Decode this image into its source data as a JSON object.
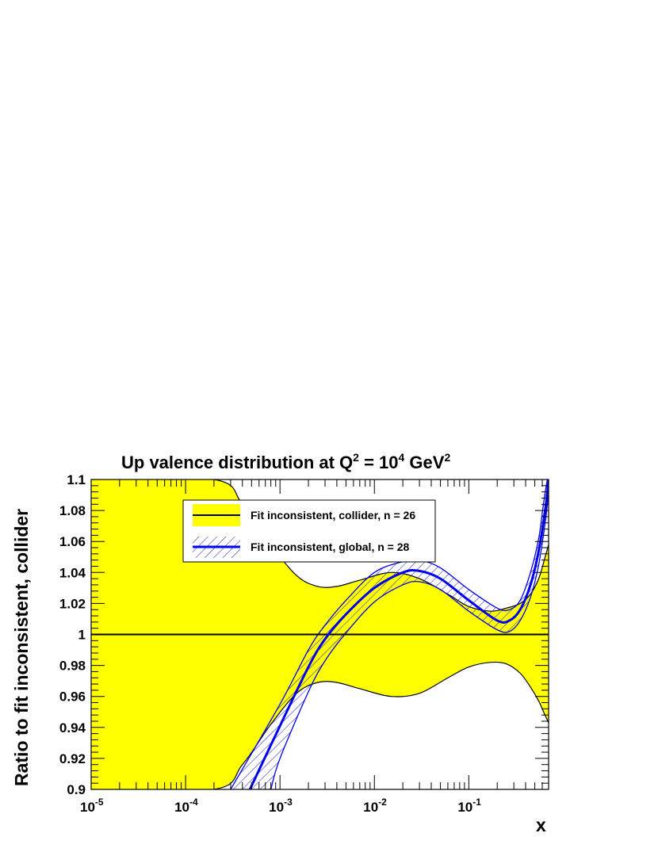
{
  "chart_data": {
    "type": "line",
    "title": {
      "main": "Up valence distribution at Q",
      "sup1": "2",
      "mid": " = 10",
      "sup2": "4",
      "unit": " GeV",
      "sup3": "2"
    },
    "xlabel": "x",
    "ylabel": "Ratio to fit inconsistent, collider",
    "x_scale": "log",
    "xlim": [
      1e-05,
      0.7
    ],
    "ylim": [
      0.9,
      1.1
    ],
    "x_ticks": [
      {
        "value": 1e-05,
        "base": "10",
        "exp": "-5"
      },
      {
        "value": 0.0001,
        "base": "10",
        "exp": "-4"
      },
      {
        "value": 0.001,
        "base": "10",
        "exp": "-3"
      },
      {
        "value": 0.01,
        "base": "10",
        "exp": "-2"
      },
      {
        "value": 0.1,
        "base": "10",
        "exp": "-1"
      }
    ],
    "y_ticks": [
      {
        "value": 0.9,
        "label": "0.9"
      },
      {
        "value": 0.92,
        "label": "0.92"
      },
      {
        "value": 0.94,
        "label": "0.94"
      },
      {
        "value": 0.96,
        "label": "0.96"
      },
      {
        "value": 0.98,
        "label": "0.98"
      },
      {
        "value": 1.0,
        "label": "1"
      },
      {
        "value": 1.02,
        "label": "1.02"
      },
      {
        "value": 1.04,
        "label": "1.04"
      },
      {
        "value": 1.06,
        "label": "1.06"
      },
      {
        "value": 1.08,
        "label": "1.08"
      },
      {
        "value": 1.1,
        "label": "1.1"
      }
    ],
    "legend_position": "top-center",
    "series": [
      {
        "name": "Fit inconsistent, collider, n = 26",
        "color": "#000000",
        "band_color": "#ffff00",
        "central": [
          [
            1e-05,
            1.0
          ],
          [
            0.7,
            1.0
          ]
        ],
        "upper": [
          [
            1e-05,
            1.1
          ],
          [
            0.0002,
            1.1
          ],
          [
            0.0004,
            1.084
          ],
          [
            0.0008,
            1.058
          ],
          [
            0.0015,
            1.038
          ],
          [
            0.0025,
            1.031
          ],
          [
            0.004,
            1.031
          ],
          [
            0.007,
            1.035
          ],
          [
            0.015,
            1.04
          ],
          [
            0.03,
            1.036
          ],
          [
            0.06,
            1.026
          ],
          [
            0.1,
            1.018
          ],
          [
            0.17,
            1.015
          ],
          [
            0.25,
            1.017
          ],
          [
            0.35,
            1.02
          ],
          [
            0.45,
            1.026
          ],
          [
            0.55,
            1.036
          ],
          [
            0.63,
            1.048
          ],
          [
            0.7,
            1.058
          ]
        ],
        "lower": [
          [
            1e-05,
            0.9
          ],
          [
            0.0002,
            0.9
          ],
          [
            0.0004,
            0.916
          ],
          [
            0.0008,
            0.942
          ],
          [
            0.0015,
            0.962
          ],
          [
            0.0025,
            0.969
          ],
          [
            0.004,
            0.969
          ],
          [
            0.007,
            0.965
          ],
          [
            0.015,
            0.96
          ],
          [
            0.03,
            0.962
          ],
          [
            0.06,
            0.972
          ],
          [
            0.1,
            0.979
          ],
          [
            0.17,
            0.982
          ],
          [
            0.25,
            0.981
          ],
          [
            0.35,
            0.975
          ],
          [
            0.45,
            0.966
          ],
          [
            0.55,
            0.957
          ],
          [
            0.63,
            0.949
          ],
          [
            0.7,
            0.943
          ]
        ]
      },
      {
        "name": "Fit inconsistent, global, n = 28",
        "color": "#0000ee",
        "band_color": "#3333cc",
        "band_style": "hatched",
        "central": [
          [
            0.00048,
            0.9
          ],
          [
            0.001,
            0.941
          ],
          [
            0.002,
            0.979
          ],
          [
            0.003,
            0.997
          ],
          [
            0.005,
            1.013
          ],
          [
            0.01,
            1.03
          ],
          [
            0.02,
            1.04
          ],
          [
            0.03,
            1.041
          ],
          [
            0.05,
            1.036
          ],
          [
            0.1,
            1.022
          ],
          [
            0.2,
            1.009
          ],
          [
            0.27,
            1.009
          ],
          [
            0.35,
            1.016
          ],
          [
            0.45,
            1.032
          ],
          [
            0.55,
            1.054
          ],
          [
            0.65,
            1.082
          ],
          [
            0.7,
            1.1
          ]
        ],
        "upper": [
          [
            0.0003,
            0.9
          ],
          [
            0.001,
            0.955
          ],
          [
            0.002,
            0.99
          ],
          [
            0.003,
            1.006
          ],
          [
            0.005,
            1.022
          ],
          [
            0.01,
            1.04
          ],
          [
            0.02,
            1.047
          ],
          [
            0.03,
            1.048
          ],
          [
            0.05,
            1.043
          ],
          [
            0.1,
            1.029
          ],
          [
            0.2,
            1.017
          ],
          [
            0.27,
            1.016
          ],
          [
            0.35,
            1.022
          ],
          [
            0.45,
            1.04
          ],
          [
            0.55,
            1.062
          ],
          [
            0.62,
            1.085
          ],
          [
            0.68,
            1.1
          ],
          [
            0.7,
            1.1
          ]
        ],
        "lower": [
          [
            0.0008,
            0.9
          ],
          [
            0.001,
            0.92
          ],
          [
            0.002,
            0.963
          ],
          [
            0.003,
            0.983
          ],
          [
            0.005,
            1.001
          ],
          [
            0.01,
            1.021
          ],
          [
            0.02,
            1.032
          ],
          [
            0.03,
            1.034
          ],
          [
            0.05,
            1.029
          ],
          [
            0.1,
            1.015
          ],
          [
            0.2,
            1.003
          ],
          [
            0.27,
            1.002
          ],
          [
            0.35,
            1.009
          ],
          [
            0.45,
            1.024
          ],
          [
            0.55,
            1.045
          ],
          [
            0.65,
            1.074
          ],
          [
            0.7,
            1.092
          ]
        ]
      }
    ]
  }
}
